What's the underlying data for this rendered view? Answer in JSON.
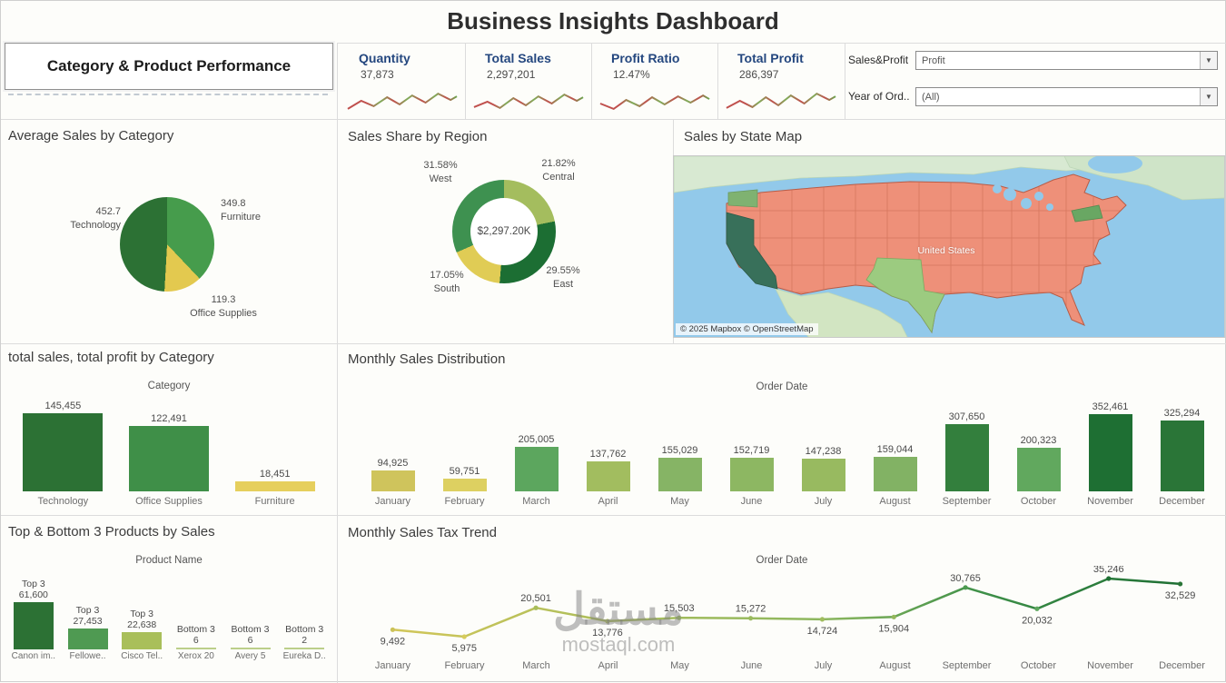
{
  "title": "Business Insights Dashboard",
  "left_panel": {
    "header": "Category & Product Performance"
  },
  "kpis": [
    {
      "label": "Quantity",
      "value": "37,873"
    },
    {
      "label": "Total Sales",
      "value": "2,297,201"
    },
    {
      "label": "Profit Ratio",
      "value": "12.47%"
    },
    {
      "label": "Total Profit",
      "value": "286,397"
    }
  ],
  "filters": {
    "sales_profit_label": "Sales&Profit",
    "sales_profit_value": "Profit",
    "year_label": "Year of Ord..",
    "year_value": "(All)"
  },
  "map": {
    "title": "Sales by State Map",
    "country_label": "United States",
    "attribution": "© 2025 Mapbox © OpenStreetMap"
  },
  "watermark": {
    "arabic": "مستقل",
    "site": "mostaql.com"
  },
  "chart_data": [
    {
      "name": "average_sales_by_category",
      "type": "pie",
      "title": "Average Sales by Category",
      "slices": [
        {
          "label": "Furniture",
          "value": 349.8,
          "value_label": "349.8",
          "color": "#469c4c"
        },
        {
          "label": "Office Supplies",
          "value": 119.3,
          "value_label": "119.3",
          "color": "#e3c94f"
        },
        {
          "label": "Technology",
          "value": 452.7,
          "value_label": "452.7",
          "color": "#2c7134"
        }
      ]
    },
    {
      "name": "sales_share_by_region",
      "type": "donut",
      "title": "Sales Share by Region",
      "center_label": "$2,297.20K",
      "slices": [
        {
          "label": "Central",
          "pct": "21.82%",
          "value": 21.82,
          "color": "#a4bd5e"
        },
        {
          "label": "East",
          "pct": "29.55%",
          "value": 29.55,
          "color": "#1c6e33"
        },
        {
          "label": "South",
          "pct": "17.05%",
          "value": 17.05,
          "color": "#e0cc55"
        },
        {
          "label": "West",
          "pct": "31.58%",
          "value": 31.58,
          "color": "#3e9150"
        }
      ]
    },
    {
      "name": "sales_profit_by_category",
      "type": "bar",
      "title": "total sales, total profit by Category",
      "axis_label": "Category",
      "categories": [
        "Technology",
        "Office Supplies",
        "Furniture"
      ],
      "values": [
        145455,
        122491,
        18451
      ],
      "value_labels": [
        "145,455",
        "122,491",
        "18,451"
      ],
      "colors": [
        "#2c7134",
        "#3f8f48",
        "#e6cf5d"
      ]
    },
    {
      "name": "top_bottom_products_by_sales",
      "type": "bar",
      "title": "Top & Bottom 3 Products by Sales",
      "axis_label": "Product Name",
      "categories": [
        "Canon im..",
        "Fellowe..",
        "Cisco Tel..",
        "Xerox 20",
        "Avery 5",
        "Eureka D.."
      ],
      "group_labels": [
        "Top 3",
        "Top 3",
        "Top 3",
        "Bottom 3",
        "Bottom 3",
        "Bottom 3"
      ],
      "values": [
        61600,
        27453,
        22638,
        6,
        6,
        2
      ],
      "value_labels": [
        "61,600",
        "27,453",
        "22,638",
        "6",
        "6",
        "2"
      ],
      "colors": [
        "#2c7134",
        "#4f9a52",
        "#a9bf5a",
        "#bccf8a",
        "#bccf8a",
        "#bccf8a"
      ]
    },
    {
      "name": "monthly_sales_distribution",
      "type": "bar",
      "title": "Monthly Sales Distribution",
      "axis_label": "Order Date",
      "categories": [
        "January",
        "February",
        "March",
        "April",
        "May",
        "June",
        "July",
        "August",
        "September",
        "October",
        "November",
        "December"
      ],
      "values": [
        94925,
        59751,
        205005,
        137762,
        155029,
        152719,
        147238,
        159044,
        307650,
        200323,
        352461,
        325294
      ],
      "value_labels": [
        "94,925",
        "59,751",
        "205,005",
        "137,762",
        "155,029",
        "152,719",
        "147,238",
        "159,044",
        "307,650",
        "200,323",
        "352,461",
        "325,294"
      ],
      "colors": [
        "#cfc45c",
        "#ddd061",
        "#5ca65e",
        "#a2bd5f",
        "#86b465",
        "#8db762",
        "#98ba60",
        "#82b264",
        "#337f3d",
        "#61a85e",
        "#1e6f33",
        "#2a7537"
      ]
    },
    {
      "name": "monthly_sales_tax_trend",
      "type": "line",
      "title": "Monthly Sales Tax Trend",
      "axis_label": "Order Date",
      "categories": [
        "January",
        "February",
        "March",
        "April",
        "May",
        "June",
        "July",
        "August",
        "September",
        "October",
        "November",
        "December"
      ],
      "values": [
        9492,
        5975,
        20501,
        13776,
        15503,
        15272,
        14724,
        15904,
        30765,
        20032,
        35246,
        32529
      ],
      "value_labels": [
        "9,492",
        "5,975",
        "20,501",
        "13,776",
        "15,503",
        "15,272",
        "14,724",
        "15,904",
        "30,765",
        "20,032",
        "35,246",
        "32,529"
      ],
      "label_side": [
        "below",
        "below",
        "above",
        "below",
        "above",
        "above",
        "below",
        "below",
        "above",
        "below",
        "above",
        "below"
      ],
      "point_colors": [
        "#ccc258",
        "#d6cb5c",
        "#a8bd5a",
        "#b0c05e",
        "#9cba5e",
        "#9aba5e",
        "#a0bc5e",
        "#94b75c",
        "#4c9a50",
        "#5ea75f",
        "#1e6f33",
        "#2a7537"
      ]
    }
  ]
}
